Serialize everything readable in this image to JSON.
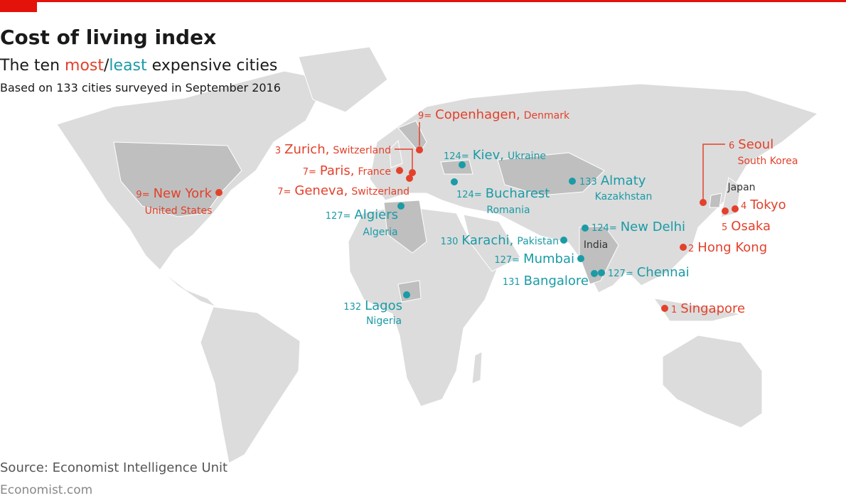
{
  "header": {
    "title": "Cost of living index",
    "subtitle": [
      {
        "text": "The ten ",
        "color": "#1a1a1a"
      },
      {
        "text": "most",
        "color": "#e3412b"
      },
      {
        "text": "/",
        "color": "#1a1a1a"
      },
      {
        "text": "least",
        "color": "#1a9ba6"
      },
      {
        "text": " expensive cities",
        "color": "#1a1a1a"
      }
    ],
    "note": "Based on 133 cities surveyed in September 2016"
  },
  "cities": [
    {
      "rank": "9=",
      "name": "Copenhagen,",
      "country": "Denmark",
      "color": "#e3412b"
    },
    {
      "rank": "3",
      "name": "Zurich,",
      "country": "Switzerland",
      "color": "#e3412b"
    },
    {
      "rank": "7=",
      "name": "Paris,",
      "country": "France",
      "color": "#e3412b"
    },
    {
      "rank": "7=",
      "name": "Geneva,",
      "country": "Switzerland",
      "color": "#e3412b"
    },
    {
      "rank": "9=",
      "name": "New York",
      "country": "United States",
      "color": "#e3412b"
    },
    {
      "rank": "124=",
      "name": "Kiev,",
      "country": "Ukraine",
      "color": "#1a9ba6"
    },
    {
      "rank": "124=",
      "name": "Bucharest",
      "country": "Romania",
      "color": "#1a9ba6"
    },
    {
      "rank": "127=",
      "name": "Algiers",
      "country": "Algeria",
      "color": "#1a9ba6"
    },
    {
      "rank": "133",
      "name": "Almaty",
      "country": "Kazakhstan",
      "color": "#1a9ba6"
    },
    {
      "rank": "124=",
      "name": "New Delhi",
      "color": "#1a9ba6"
    },
    {
      "rank": "130",
      "name": "Karachi,",
      "country": "Pakistan",
      "color": "#1a9ba6"
    },
    {
      "rank": "127=",
      "name": "Mumbai",
      "color": "#1a9ba6"
    },
    {
      "rank": "127=",
      "name": "Chennai",
      "color": "#1a9ba6"
    },
    {
      "rank": "131",
      "name": "Bangalore",
      "color": "#1a9ba6"
    },
    {
      "rank": "132",
      "name": "Lagos",
      "country": "Nigeria",
      "color": "#1a9ba6"
    },
    {
      "rank": "6",
      "name": "Seoul",
      "country": "South Korea",
      "color": "#e3412b"
    },
    {
      "rank": "4",
      "name": "Tokyo",
      "color": "#e3412b"
    },
    {
      "rank": "5",
      "name": "Osaka",
      "color": "#e3412b"
    },
    {
      "rank": "2",
      "name": "Hong Kong",
      "color": "#e3412b"
    },
    {
      "rank": "1",
      "name": "Singapore",
      "color": "#e3412b"
    }
  ],
  "country_labels": [
    "Japan",
    "India"
  ],
  "footer": {
    "source": "Source: Economist Intelligence Unit",
    "site": "Economist.com"
  }
}
